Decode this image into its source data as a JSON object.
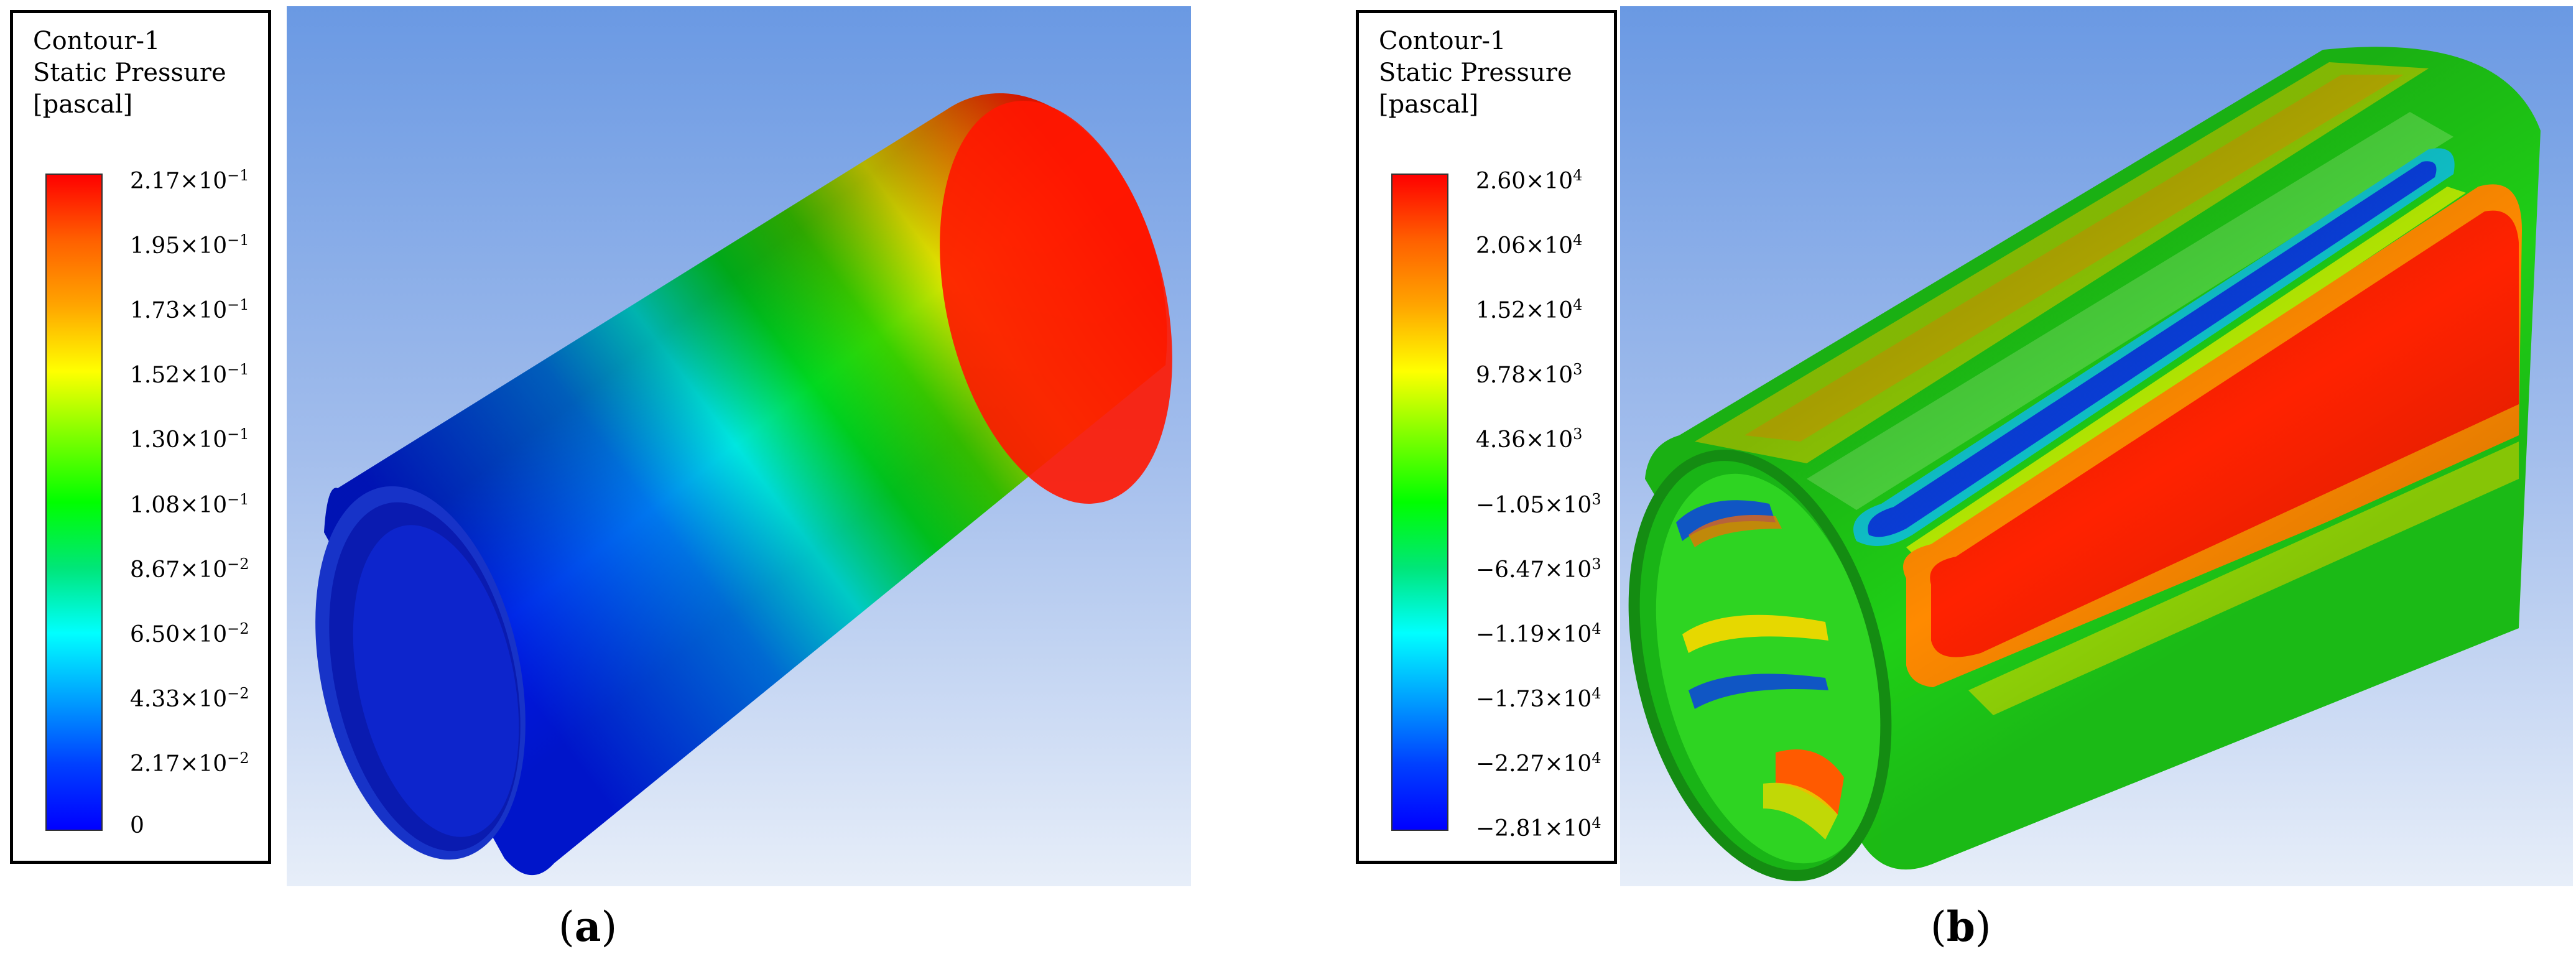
{
  "panels": [
    {
      "legend": {
        "title_lines": [
          "Contour-1",
          "Static Pressure",
          "[pascal]"
        ],
        "ticks": [
          {
            "mant": "2.17",
            "exp": "−1"
          },
          {
            "mant": "1.95",
            "exp": "−1"
          },
          {
            "mant": "1.73",
            "exp": "−1"
          },
          {
            "mant": "1.52",
            "exp": "−1"
          },
          {
            "mant": "1.30",
            "exp": "−1"
          },
          {
            "mant": "1.08",
            "exp": "−1"
          },
          {
            "mant": "8.67",
            "exp": "−2"
          },
          {
            "mant": "6.50",
            "exp": "−2"
          },
          {
            "mant": "4.33",
            "exp": "−2"
          },
          {
            "mant": "2.17",
            "exp": "−2"
          },
          {
            "mant": "0",
            "exp": ""
          }
        ]
      },
      "caption": {
        "open": "(",
        "label": "a",
        "close": ")"
      }
    },
    {
      "legend": {
        "title_lines": [
          "Contour-1",
          "Static Pressure",
          "[pascal]"
        ],
        "ticks": [
          {
            "mant": "2.60",
            "exp": "4"
          },
          {
            "mant": "2.06",
            "exp": "4"
          },
          {
            "mant": "1.52",
            "exp": "4"
          },
          {
            "mant": "9.78",
            "exp": "3"
          },
          {
            "mant": "4.36",
            "exp": "3"
          },
          {
            "mant": "−1.05",
            "exp": "3"
          },
          {
            "mant": "−6.47",
            "exp": "3"
          },
          {
            "mant": "−1.19",
            "exp": "4"
          },
          {
            "mant": "−1.73",
            "exp": "4"
          },
          {
            "mant": "−2.27",
            "exp": "4"
          },
          {
            "mant": "−2.81",
            "exp": "4"
          }
        ]
      },
      "caption": {
        "open": "(",
        "label": "b",
        "close": ")"
      }
    }
  ],
  "colormap": [
    "#ff0000",
    "#ff6000",
    "#ffa500",
    "#ffff00",
    "#7dff00",
    "#00ff00",
    "#00e678",
    "#00ffff",
    "#00a0ff",
    "#0040ff",
    "#0000ff"
  ]
}
